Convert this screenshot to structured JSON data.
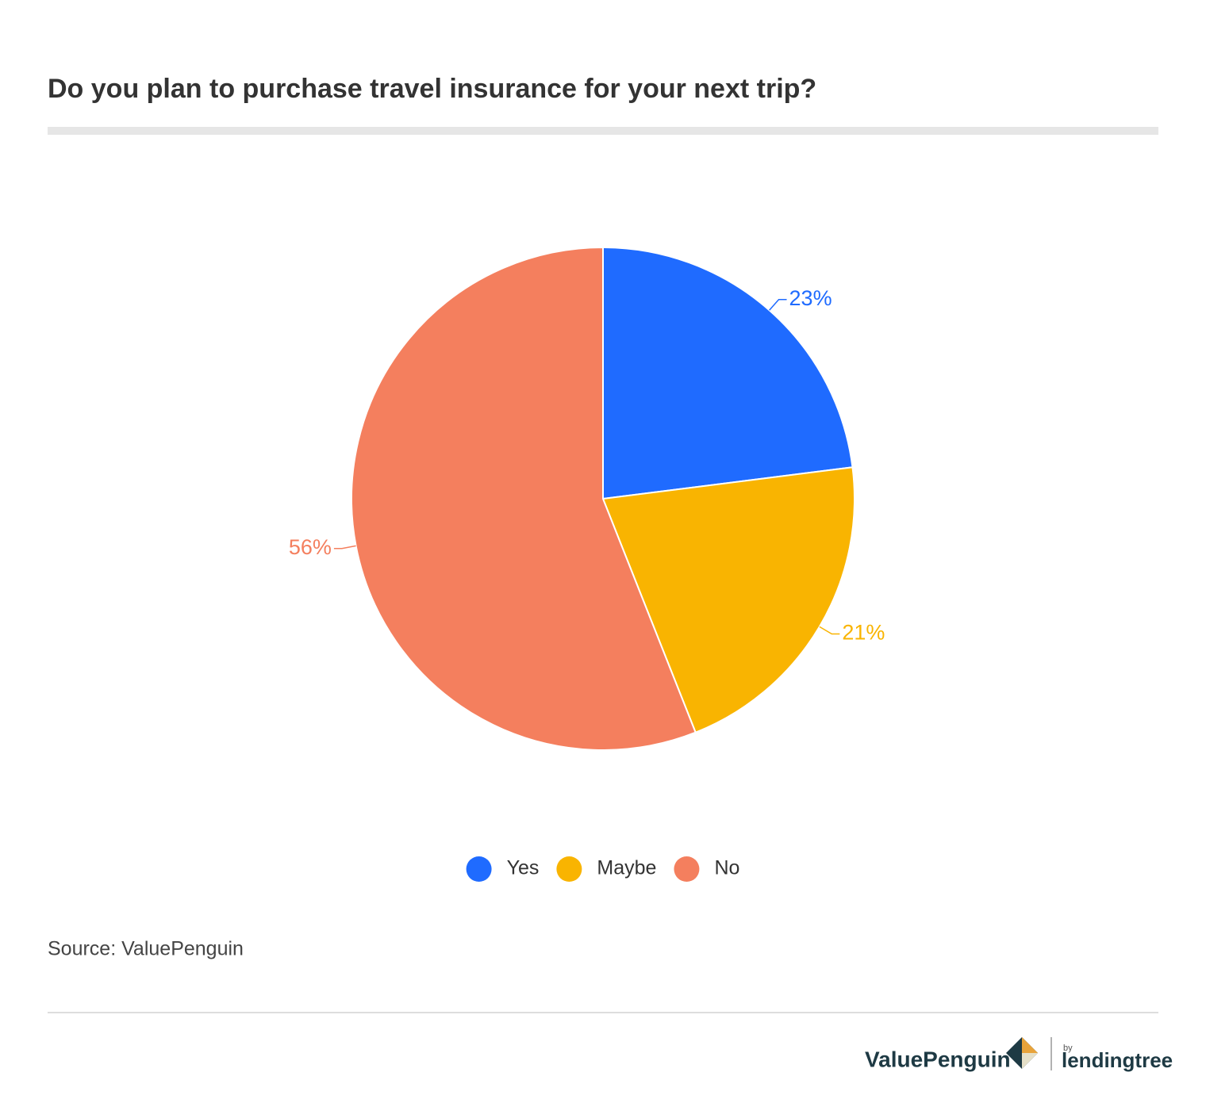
{
  "chart_data": {
    "type": "pie",
    "title": "Do you plan to purchase travel insurance for your next trip?",
    "categories": [
      "Yes",
      "Maybe",
      "No"
    ],
    "values": [
      23,
      21,
      56
    ],
    "value_labels": [
      "23%",
      "21%",
      "56%"
    ],
    "colors": [
      "#1f6bff",
      "#f9b401",
      "#f47f5e"
    ],
    "legend": "bottom",
    "source": "Source: ValuePenguin"
  },
  "footer": {
    "brand": "ValuePenguin",
    "by": "by",
    "partner": "lendingtree"
  }
}
